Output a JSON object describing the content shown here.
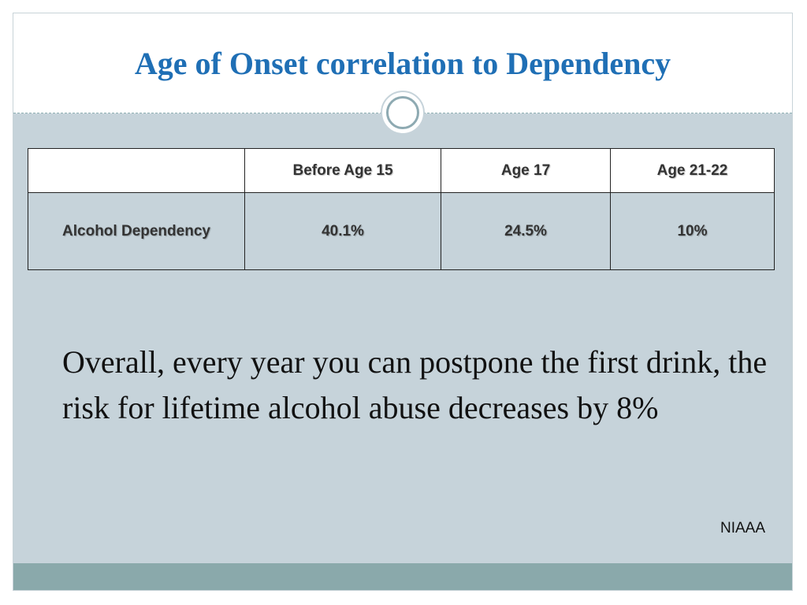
{
  "slide": {
    "title": "Age of Onset correlation to Dependency",
    "table": {
      "headers": [
        "",
        "Before Age 15",
        "Age 17",
        "Age 21-22"
      ],
      "rows": [
        {
          "label": "Alcohol Dependency",
          "values": [
            "40.1%",
            "24.5%",
            "10%"
          ]
        }
      ]
    },
    "summary": "Overall, every year  you can postpone the first drink, the risk for lifetime alcohol abuse decreases by 8%",
    "source": "NIAAA"
  },
  "colors": {
    "title": "#1f6fb5",
    "background": "#c6d3da",
    "footer_band": "#8aa9ab"
  }
}
